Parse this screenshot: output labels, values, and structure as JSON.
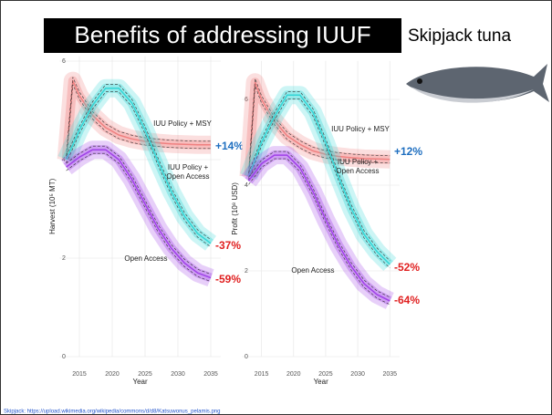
{
  "header": {
    "title": "Benefits of addressing IUUF",
    "subtitle": "Skipjack tuna"
  },
  "footnote": "Skipjack: https://upload.wikimedia.org/wikipedia/commons/d/d8/Katsuwonus_pelamis.png",
  "chart_data": [
    {
      "type": "line",
      "xlabel": "Year",
      "ylabel": "Harvest (10⁵ MT)",
      "x": [
        2013,
        2014,
        2015,
        2017,
        2019,
        2021,
        2023,
        2025,
        2027,
        2029,
        2031,
        2033,
        2035
      ],
      "xlim": [
        2012,
        2036.5
      ],
      "xticks": [
        2015,
        2020,
        2025,
        2030,
        2035
      ],
      "ylim": [
        0,
        6.1
      ],
      "yticks": [
        0,
        2,
        4,
        6
      ],
      "grid": true,
      "series": [
        {
          "name": "IUU Policy + MSY",
          "color": "#f08080",
          "values": [
            4.0,
            5.6,
            5.3,
            4.9,
            4.65,
            4.5,
            4.42,
            4.37,
            4.34,
            4.32,
            4.31,
            4.3,
            4.3
          ]
        },
        {
          "name": "IUU Policy + Open Access",
          "color": "#33d6d6",
          "values": [
            4.0,
            4.3,
            4.6,
            5.1,
            5.45,
            5.45,
            5.15,
            4.6,
            3.95,
            3.35,
            2.85,
            2.5,
            2.3
          ]
        },
        {
          "name": "Open Access",
          "color": "#a040e8",
          "values": [
            3.85,
            3.95,
            4.05,
            4.2,
            4.2,
            4.0,
            3.6,
            3.1,
            2.6,
            2.2,
            1.9,
            1.7,
            1.6
          ]
        }
      ],
      "annotations": [
        {
          "text": "IUU Policy + MSY",
          "color": "#222222"
        },
        {
          "text": "IUU Policy +",
          "color": "#222222"
        },
        {
          "text": "Open Access",
          "color": "#222222"
        },
        {
          "text": "Open Access",
          "color": "#222222"
        },
        {
          "text": "+14%",
          "color": "#1f6fc0"
        },
        {
          "text": "-37%",
          "color": "#e02020"
        },
        {
          "text": "-59%",
          "color": "#e02020"
        }
      ]
    },
    {
      "type": "line",
      "xlabel": "Year",
      "ylabel": "Profit (10⁸ USD)",
      "x": [
        2013,
        2014,
        2015,
        2017,
        2019,
        2021,
        2023,
        2025,
        2027,
        2029,
        2031,
        2033,
        2035
      ],
      "xlim": [
        2012,
        2036.5
      ],
      "xticks": [
        2015,
        2020,
        2025,
        2030,
        2035
      ],
      "ylim": [
        0,
        6.9
      ],
      "yticks": [
        0,
        2,
        4,
        6
      ],
      "grid": true,
      "series": [
        {
          "name": "IUU Policy + MSY",
          "color": "#f08080",
          "values": [
            4.2,
            6.4,
            6.0,
            5.5,
            5.15,
            4.95,
            4.8,
            4.72,
            4.67,
            4.64,
            4.62,
            4.61,
            4.6
          ]
        },
        {
          "name": "IUU Policy + Open Access",
          "color": "#33d6d6",
          "values": [
            4.2,
            4.6,
            5.0,
            5.6,
            6.1,
            6.1,
            5.7,
            5.0,
            4.2,
            3.45,
            2.85,
            2.45,
            2.15
          ]
        },
        {
          "name": "Open Access",
          "color": "#a040e8",
          "values": [
            4.1,
            4.3,
            4.5,
            4.7,
            4.7,
            4.4,
            3.85,
            3.2,
            2.6,
            2.1,
            1.7,
            1.45,
            1.3
          ]
        }
      ],
      "annotations": [
        {
          "text": "IUU Policy + MSY",
          "color": "#222222"
        },
        {
          "text": "IUU Policy +",
          "color": "#222222"
        },
        {
          "text": "Open Access",
          "color": "#222222"
        },
        {
          "text": "Open Access",
          "color": "#222222"
        },
        {
          "text": "+12%",
          "color": "#1f6fc0"
        },
        {
          "text": "-52%",
          "color": "#e02020"
        },
        {
          "text": "-64%",
          "color": "#e02020"
        }
      ]
    }
  ]
}
